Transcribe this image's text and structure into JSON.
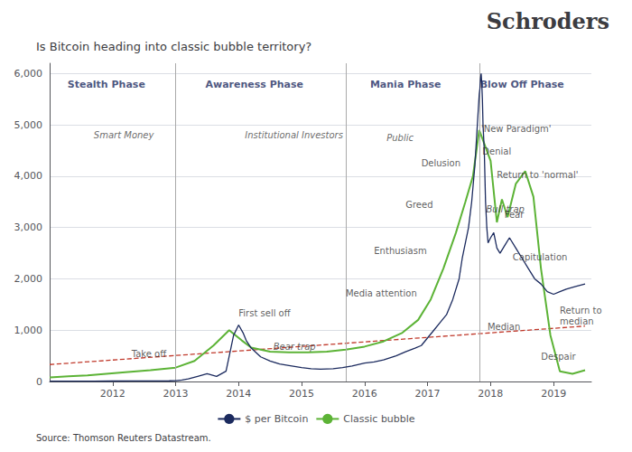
{
  "chart_data": {
    "type": "line",
    "title": "Is Bitcoin heading into classic bubble territory?",
    "brand": "Schroders",
    "source": "Source: Thomson Reuters Datastream.",
    "xlim": [
      2011.0,
      2019.6
    ],
    "xticks": [
      2012,
      2013,
      2014,
      2015,
      2016,
      2017,
      2018,
      2019
    ],
    "ylim": [
      0,
      6200
    ],
    "yticks": [
      0,
      {
        "value": 1000,
        "label": "1,000"
      },
      {
        "value": 2000,
        "label": "2,000"
      },
      {
        "value": 3000,
        "label": "3,000"
      },
      {
        "value": 4000,
        "label": "4,000"
      },
      {
        "value": 5000,
        "label": "5,000"
      },
      {
        "value": 6000,
        "label": "6,000"
      }
    ],
    "grid": true,
    "vlines": [
      2013.0,
      2015.7,
      2017.83
    ],
    "series": [
      {
        "name": "$ per Bitcoin",
        "color": "#1b2a5e",
        "line_style": "solid",
        "x": [
          2011.0,
          2011.3,
          2011.7,
          2012.0,
          2012.3,
          2012.6,
          2012.9,
          2013.0,
          2013.1,
          2013.2,
          2013.35,
          2013.5,
          2013.65,
          2013.8,
          2013.92,
          2014.0,
          2014.07,
          2014.12,
          2014.2,
          2014.35,
          2014.5,
          2014.65,
          2014.8,
          2015.0,
          2015.15,
          2015.3,
          2015.5,
          2015.65,
          2015.8,
          2016.0,
          2016.15,
          2016.3,
          2016.5,
          2016.65,
          2016.8,
          2016.9,
          2017.0,
          2017.1,
          2017.2,
          2017.3,
          2017.4,
          2017.5,
          2017.55,
          2017.6,
          2017.65,
          2017.7,
          2017.75,
          2017.78,
          2017.8,
          2017.82,
          2017.83,
          2017.84,
          2017.85,
          2017.86,
          2017.87,
          2017.88,
          2017.9,
          2017.92,
          2017.94,
          2017.96,
          2018.0,
          2018.05,
          2018.1,
          2018.15,
          2018.2,
          2018.25,
          2018.3,
          2018.4,
          2018.5,
          2018.6,
          2018.7,
          2018.8,
          2018.9,
          2019.0,
          2019.1,
          2019.2,
          2019.35,
          2019.5
        ],
        "values": [
          5,
          8,
          6,
          9,
          10,
          11,
          13,
          15,
          30,
          50,
          100,
          150,
          100,
          200,
          900,
          1100,
          950,
          800,
          650,
          480,
          400,
          340,
          310,
          270,
          250,
          240,
          250,
          270,
          300,
          360,
          380,
          420,
          500,
          580,
          650,
          700,
          850,
          1000,
          1150,
          1300,
          1600,
          2000,
          2400,
          2700,
          3000,
          3500,
          4200,
          4800,
          5200,
          5600,
          5700,
          5900,
          6000,
          5800,
          5500,
          5000,
          4500,
          3500,
          3000,
          2700,
          2800,
          2900,
          2600,
          2500,
          2600,
          2700,
          2800,
          2600,
          2400,
          2200,
          2000,
          1900,
          1750,
          1700,
          1750,
          1800,
          1850,
          1900
        ]
      },
      {
        "name": "Classic bubble",
        "color": "#5cb336",
        "line_style": "solid",
        "x": [
          2011.0,
          2011.3,
          2011.6,
          2011.9,
          2012.2,
          2012.6,
          2013.0,
          2013.3,
          2013.6,
          2013.85,
          2014.05,
          2014.2,
          2014.5,
          2014.8,
          2015.1,
          2015.4,
          2015.7,
          2016.0,
          2016.3,
          2016.6,
          2016.85,
          2017.05,
          2017.25,
          2017.45,
          2017.6,
          2017.72,
          2017.82,
          2018.0,
          2018.1,
          2018.18,
          2018.27,
          2018.4,
          2018.55,
          2018.68,
          2018.8,
          2018.95,
          2019.1,
          2019.3,
          2019.5
        ],
        "values": [
          80,
          100,
          120,
          150,
          180,
          220,
          270,
          400,
          700,
          1000,
          800,
          660,
          580,
          570,
          570,
          580,
          620,
          680,
          780,
          950,
          1200,
          1600,
          2200,
          2900,
          3500,
          4000,
          4900,
          4300,
          3100,
          3550,
          3200,
          3850,
          4100,
          3600,
          2200,
          900,
          200,
          150,
          220
        ]
      },
      {
        "color": "#c0392b",
        "line_style": "dashed",
        "x": [
          2011.0,
          2019.5
        ],
        "values": [
          330,
          1080
        ]
      }
    ],
    "phase_labels": [
      {
        "text": "Stealth Phase",
        "x": 2011.9,
        "y": 5900
      },
      {
        "text": "Awareness Phase",
        "x": 2014.25,
        "y": 5900
      },
      {
        "text": "Mania Phase",
        "x": 2016.65,
        "y": 5900
      },
      {
        "text": "Blow Off Phase",
        "x": 2018.5,
        "y": 5900
      }
    ],
    "phase_subtitles": [
      {
        "text": "Smart Money",
        "x": 2011.7,
        "y": 4900
      },
      {
        "text": "Institutional Investors",
        "x": 2014.1,
        "y": 4900
      },
      {
        "text": "Public",
        "x": 2016.35,
        "y": 4850
      }
    ],
    "annotations": [
      {
        "text": "Take off",
        "x": 2012.3,
        "y": 530,
        "style": "normal"
      },
      {
        "text": "First sell off",
        "x": 2014.0,
        "y": 1330,
        "style": "normal"
      },
      {
        "text": "Bear trap",
        "x": 2014.55,
        "y": 670,
        "style": "italic"
      },
      {
        "text": "Media attention",
        "x": 2015.7,
        "y": 1720,
        "style": "normal"
      },
      {
        "text": "Enthusiasm",
        "x": 2016.15,
        "y": 2550,
        "style": "normal"
      },
      {
        "text": "Greed",
        "x": 2016.65,
        "y": 3450,
        "style": "normal"
      },
      {
        "text": "Delusion",
        "x": 2016.9,
        "y": 4250,
        "style": "normal"
      },
      {
        "text": "'New Paradigm'",
        "x": 2017.85,
        "y": 4920,
        "style": "normal"
      },
      {
        "text": "Denial",
        "x": 2017.87,
        "y": 4480,
        "style": "normal"
      },
      {
        "text": "Bull trap",
        "x": 2017.93,
        "y": 3350,
        "style": "italic"
      },
      {
        "text": "Return to 'normal'",
        "x": 2018.1,
        "y": 4030,
        "style": "normal"
      },
      {
        "text": "Fear",
        "x": 2018.22,
        "y": 3250,
        "style": "normal"
      },
      {
        "text": "Capitulation",
        "x": 2018.35,
        "y": 2430,
        "style": "normal"
      },
      {
        "text": "Median",
        "x": 2017.95,
        "y": 1070,
        "style": "normal"
      },
      {
        "text": "Despair",
        "x": 2018.8,
        "y": 480,
        "style": "normal"
      },
      {
        "text": "Return to\nmedian",
        "x": 2019.1,
        "y": 1270,
        "style": "normal"
      }
    ]
  }
}
